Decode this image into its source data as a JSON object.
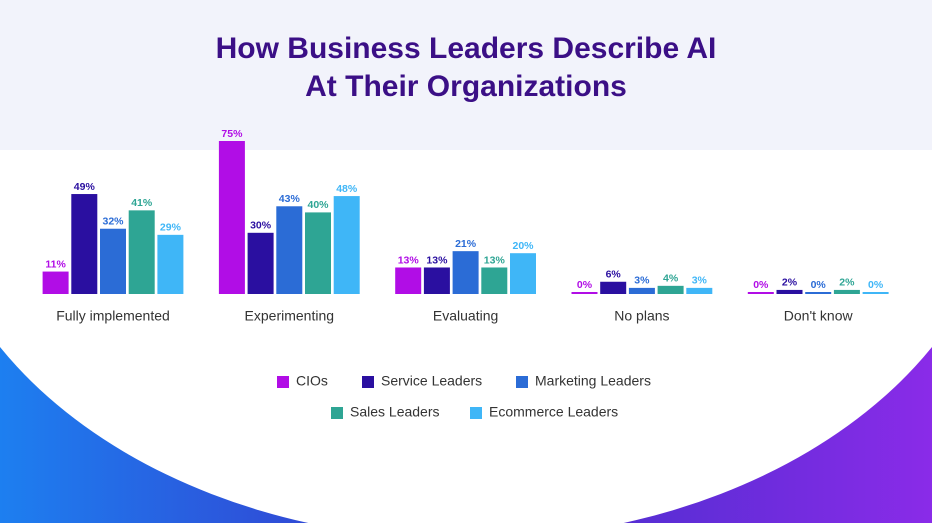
{
  "chart_data": {
    "type": "bar",
    "title": [
      "How Business Leaders Describe AI",
      "At Their Organizations"
    ],
    "categories": [
      "Fully implemented",
      "Experimenting",
      "Evaluating",
      "No plans",
      "Don't know"
    ],
    "series": [
      {
        "name": "CIOs",
        "color": "#b10de6",
        "values": [
          11,
          75,
          13,
          0,
          0
        ],
        "value_labels": [
          "11%",
          "75%",
          "13%",
          "0%",
          "0%"
        ]
      },
      {
        "name": "Service Leaders",
        "color": "#2a0fa0",
        "values": [
          49,
          30,
          13,
          6,
          2
        ],
        "value_labels": [
          "49%",
          "30%",
          "13%",
          "6%",
          "2%"
        ]
      },
      {
        "name": "Marketing Leaders",
        "color": "#2b6cd6",
        "values": [
          32,
          43,
          21,
          3,
          0
        ],
        "value_labels": [
          "32%",
          "43%",
          "21%",
          "3%",
          "0%"
        ]
      },
      {
        "name": "Sales Leaders",
        "color": "#2ea594",
        "values": [
          41,
          40,
          13,
          4,
          2
        ],
        "value_labels": [
          "41%",
          "40%",
          "13%",
          "4%",
          "2%"
        ]
      },
      {
        "name": "Ecommerce Leaders",
        "color": "#3fb6f7",
        "values": [
          29,
          48,
          20,
          3,
          0
        ],
        "value_labels": [
          "29%",
          "48%",
          "20%",
          "3%",
          "0%"
        ]
      }
    ]
  }
}
